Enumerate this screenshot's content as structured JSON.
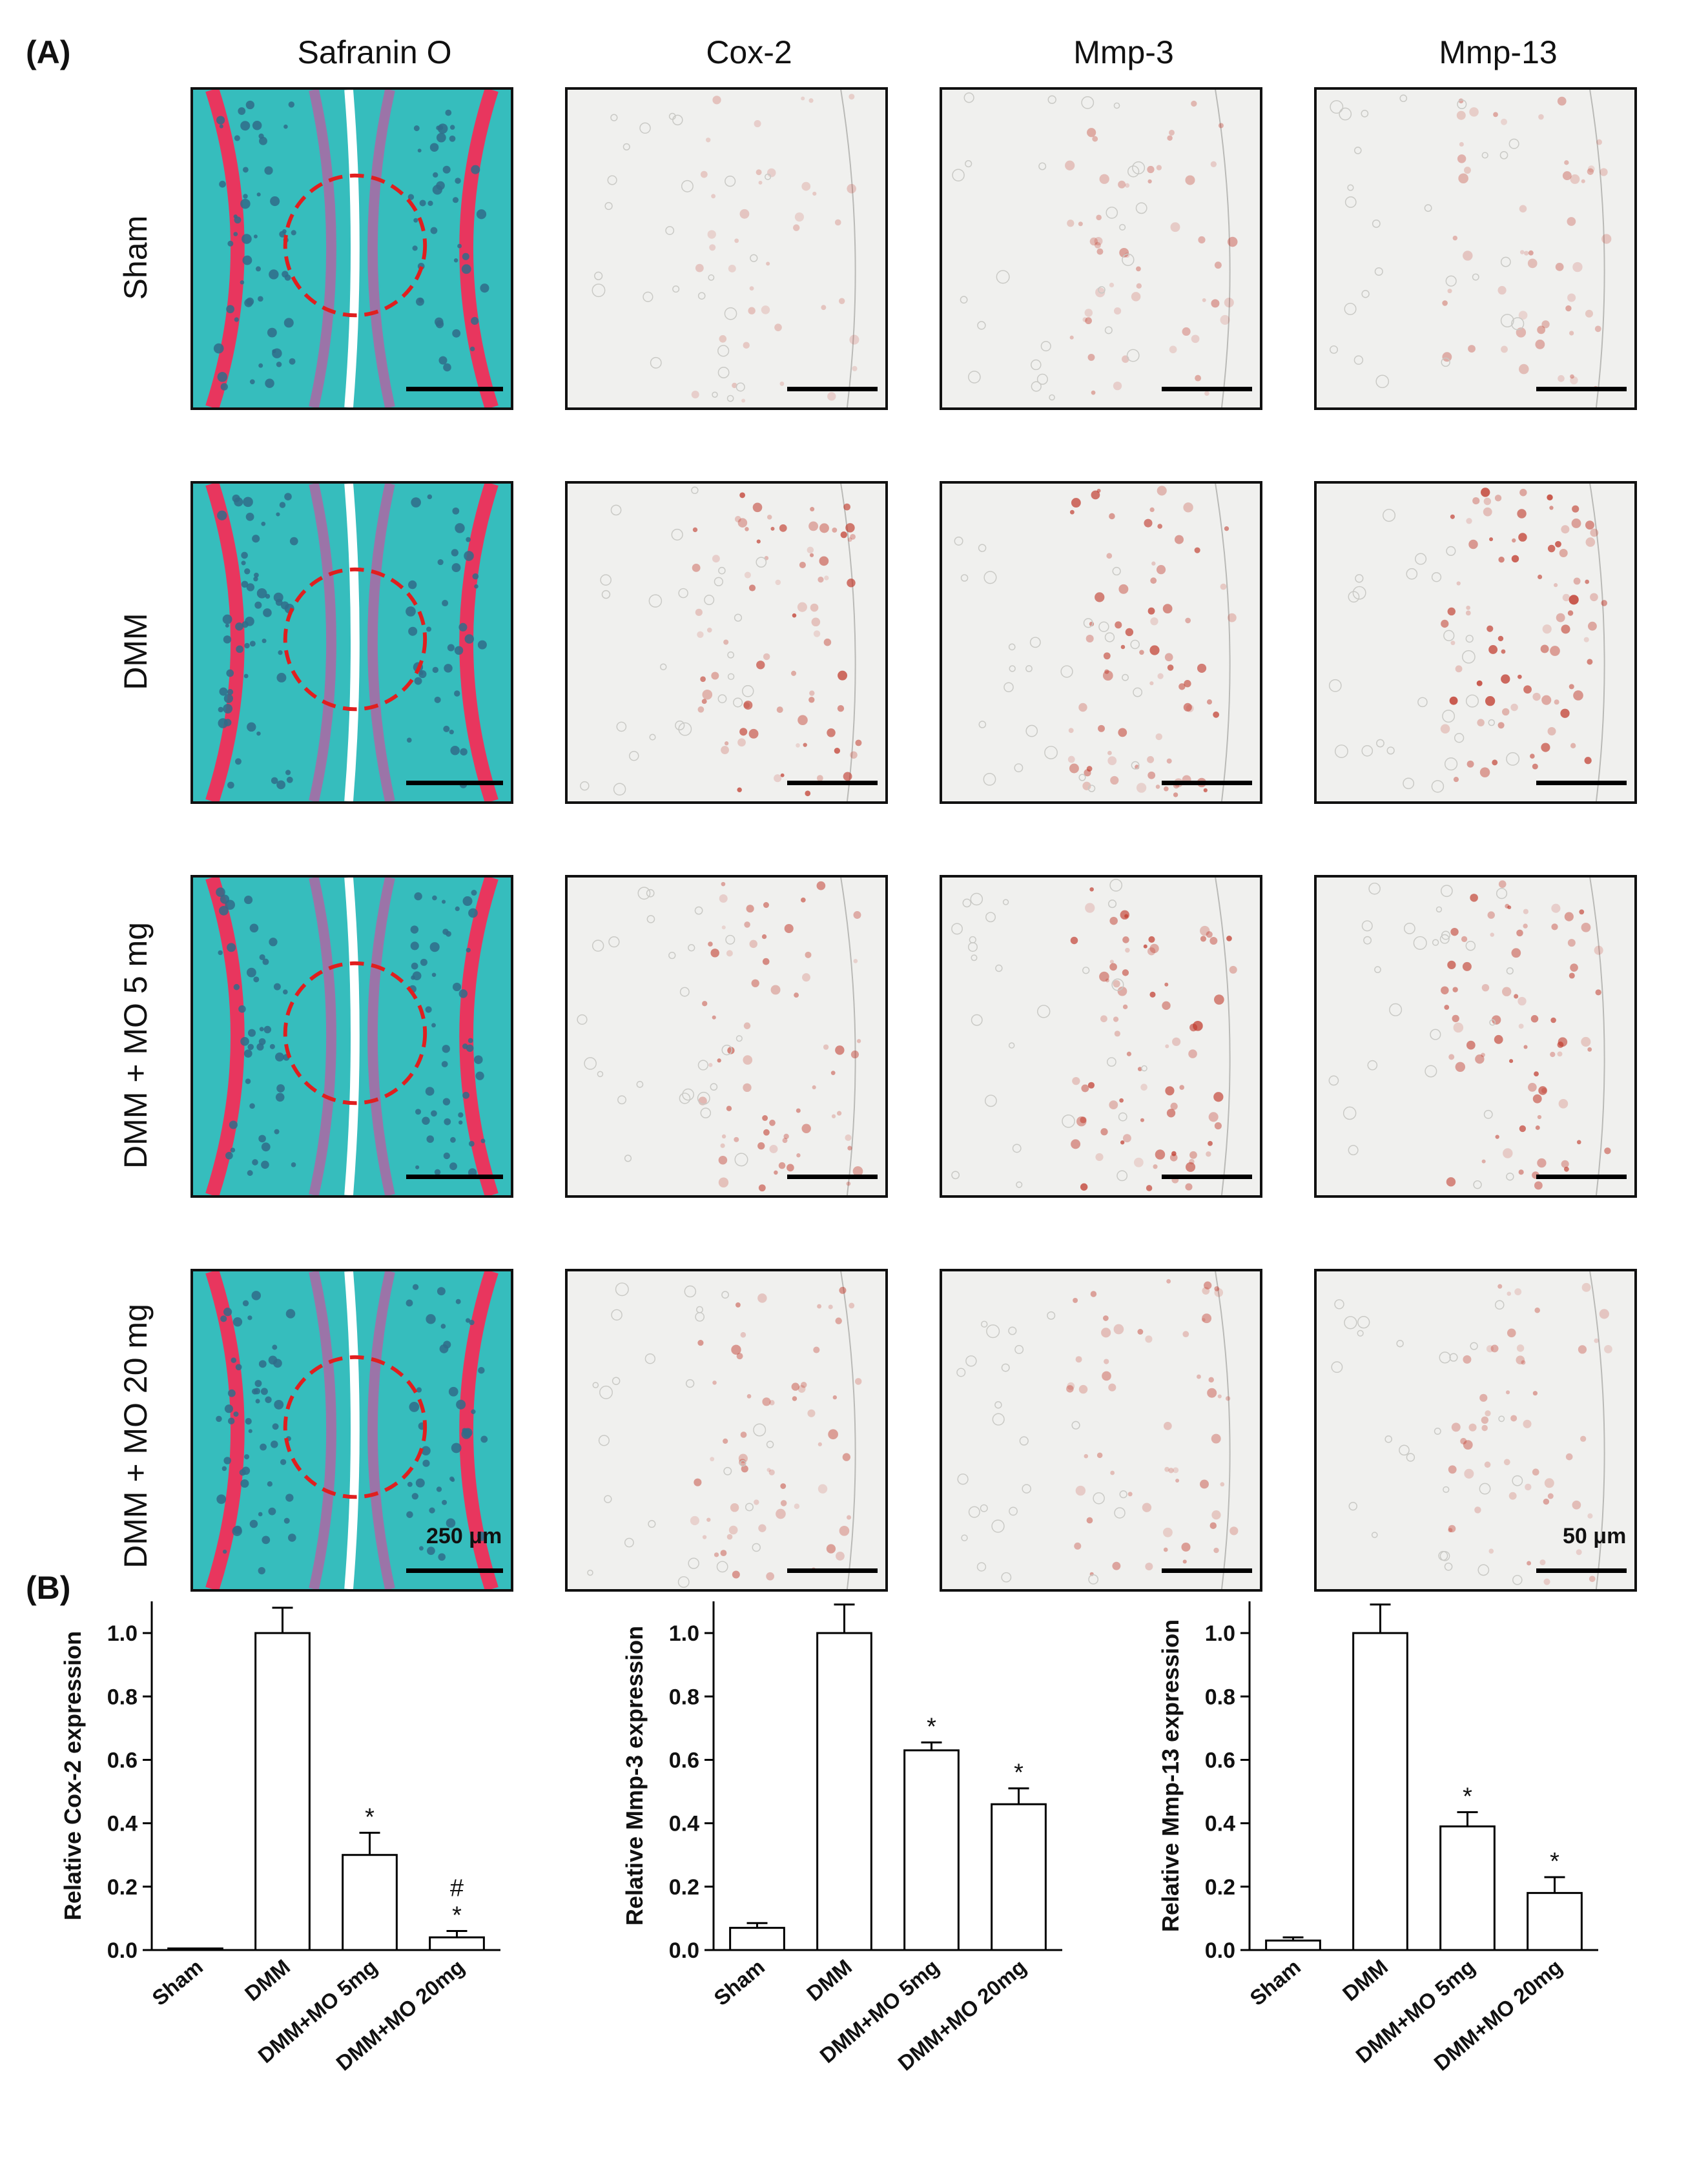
{
  "figure": {
    "panel_a_label": "(A)",
    "panel_b_label": "(B)",
    "columns": [
      "Safranin O",
      "Cox-2",
      "Mmp-3",
      "Mmp-13"
    ],
    "rows": [
      "Sham",
      "DMM",
      "DMM + MO 5 mg",
      "DMM + MO 20 mg"
    ],
    "scale_left": "250 μm",
    "scale_right": "50 μm",
    "colors": {
      "safranin_bg": "#36bdbd",
      "safranin_red": "#e8365e",
      "bone_dots": "#2f6c8a",
      "ihc_bg": "#f0f0ee",
      "ihc_stain": "#c0392b",
      "circle": "#e01f1f"
    }
  },
  "chart_data": [
    {
      "type": "bar",
      "categories": [
        "Sham",
        "DMM",
        "DMM+MO 5mg",
        "DMM+MO 20mg"
      ],
      "values": [
        0.005,
        1.0,
        0.3,
        0.04
      ],
      "errors": [
        0.0,
        0.08,
        0.07,
        0.02
      ],
      "annotations": [
        "",
        "",
        "*",
        "#\n*"
      ],
      "ylabel": "Relative Cox-2 expression",
      "yticks": [
        "0.0",
        "0.2",
        "0.4",
        "0.6",
        "0.8",
        "1.0"
      ],
      "ylim": [
        0,
        1.1
      ]
    },
    {
      "type": "bar",
      "categories": [
        "Sham",
        "DMM",
        "DMM+MO 5mg",
        "DMM+MO 20mg"
      ],
      "values": [
        0.07,
        1.0,
        0.63,
        0.46
      ],
      "errors": [
        0.015,
        0.09,
        0.025,
        0.05
      ],
      "annotations": [
        "",
        "",
        "*",
        "*"
      ],
      "ylabel": "Relative Mmp-3 expression",
      "yticks": [
        "0.0",
        "0.2",
        "0.4",
        "0.6",
        "0.8",
        "1.0"
      ],
      "ylim": [
        0,
        1.1
      ]
    },
    {
      "type": "bar",
      "categories": [
        "Sham",
        "DMM",
        "DMM+MO 5mg",
        "DMM+MO 20mg"
      ],
      "values": [
        0.03,
        1.0,
        0.39,
        0.18
      ],
      "errors": [
        0.01,
        0.09,
        0.045,
        0.05
      ],
      "annotations": [
        "",
        "",
        "*",
        "*"
      ],
      "ylabel": "Relative Mmp-13 expression",
      "yticks": [
        "0.0",
        "0.2",
        "0.4",
        "0.6",
        "0.8",
        "1.0"
      ],
      "ylim": [
        0,
        1.1
      ]
    }
  ]
}
